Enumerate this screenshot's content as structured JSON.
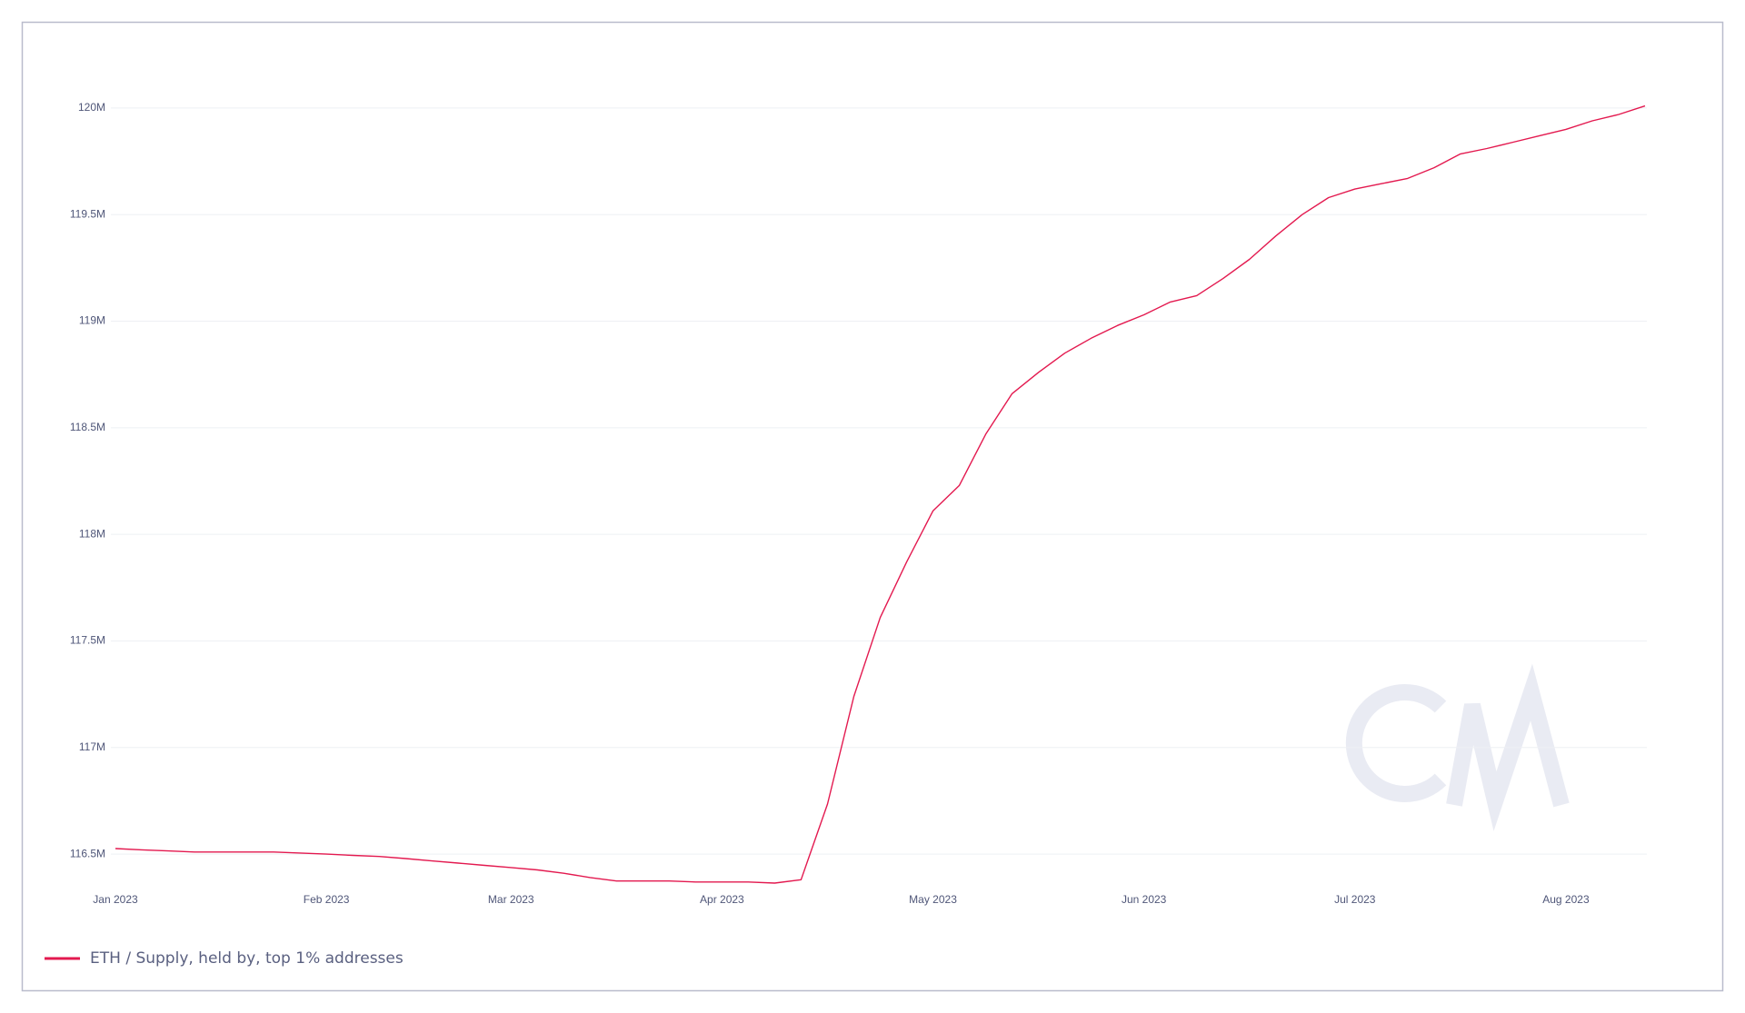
{
  "chart_data": {
    "type": "line",
    "x": [
      "Jan 2023",
      null,
      null,
      null,
      null,
      null,
      null,
      null,
      "Feb 2023",
      null,
      null,
      null,
      null,
      null,
      null,
      "Mar 2023",
      null,
      null,
      null,
      null,
      null,
      null,
      null,
      "Apr 2023",
      null,
      null,
      null,
      null,
      null,
      null,
      null,
      "May 2023",
      null,
      null,
      null,
      null,
      null,
      null,
      null,
      "Jun 2023",
      null,
      null,
      null,
      null,
      null,
      null,
      null,
      "Jul 2023",
      null,
      null,
      null,
      null,
      null,
      null,
      null,
      "Aug 2023",
      null,
      null,
      null
    ],
    "series": [
      {
        "name": "ETH / Supply, held by, top 1% addresses",
        "color": "#e3194f",
        "values": [
          116526000,
          116520000,
          116515000,
          116510000,
          116510000,
          116510000,
          116510000,
          116505000,
          116500000,
          116494000,
          116489000,
          116479000,
          116468000,
          116458000,
          116447000,
          116437000,
          116426000,
          116410000,
          116390000,
          116374000,
          116374000,
          116374000,
          116369000,
          116369000,
          116369000,
          116364000,
          116380000,
          116735000,
          117240000,
          117610000,
          117870000,
          118110000,
          118230000,
          118470000,
          118660000,
          118760000,
          118850000,
          118920000,
          118980000,
          119030000,
          119090000,
          119120000,
          119200000,
          119290000,
          119400000,
          119500000,
          119580000,
          119620000,
          119645000,
          119670000,
          119720000,
          119785000,
          119810000,
          119840000,
          119870000,
          119900000,
          119940000,
          119970000,
          120010000
        ]
      }
    ],
    "ylim": [
      116330000,
      120200000
    ],
    "yticks": [
      {
        "value": 116500000,
        "label": "116.5M"
      },
      {
        "value": 117000000,
        "label": "117M"
      },
      {
        "value": 117500000,
        "label": "117.5M"
      },
      {
        "value": 118000000,
        "label": "118M"
      },
      {
        "value": 118500000,
        "label": "118.5M"
      },
      {
        "value": 119000000,
        "label": "119M"
      },
      {
        "value": 119500000,
        "label": "119.5M"
      },
      {
        "value": 120000000,
        "label": "120M"
      }
    ],
    "grid": true,
    "legend": "bottom-left"
  }
}
